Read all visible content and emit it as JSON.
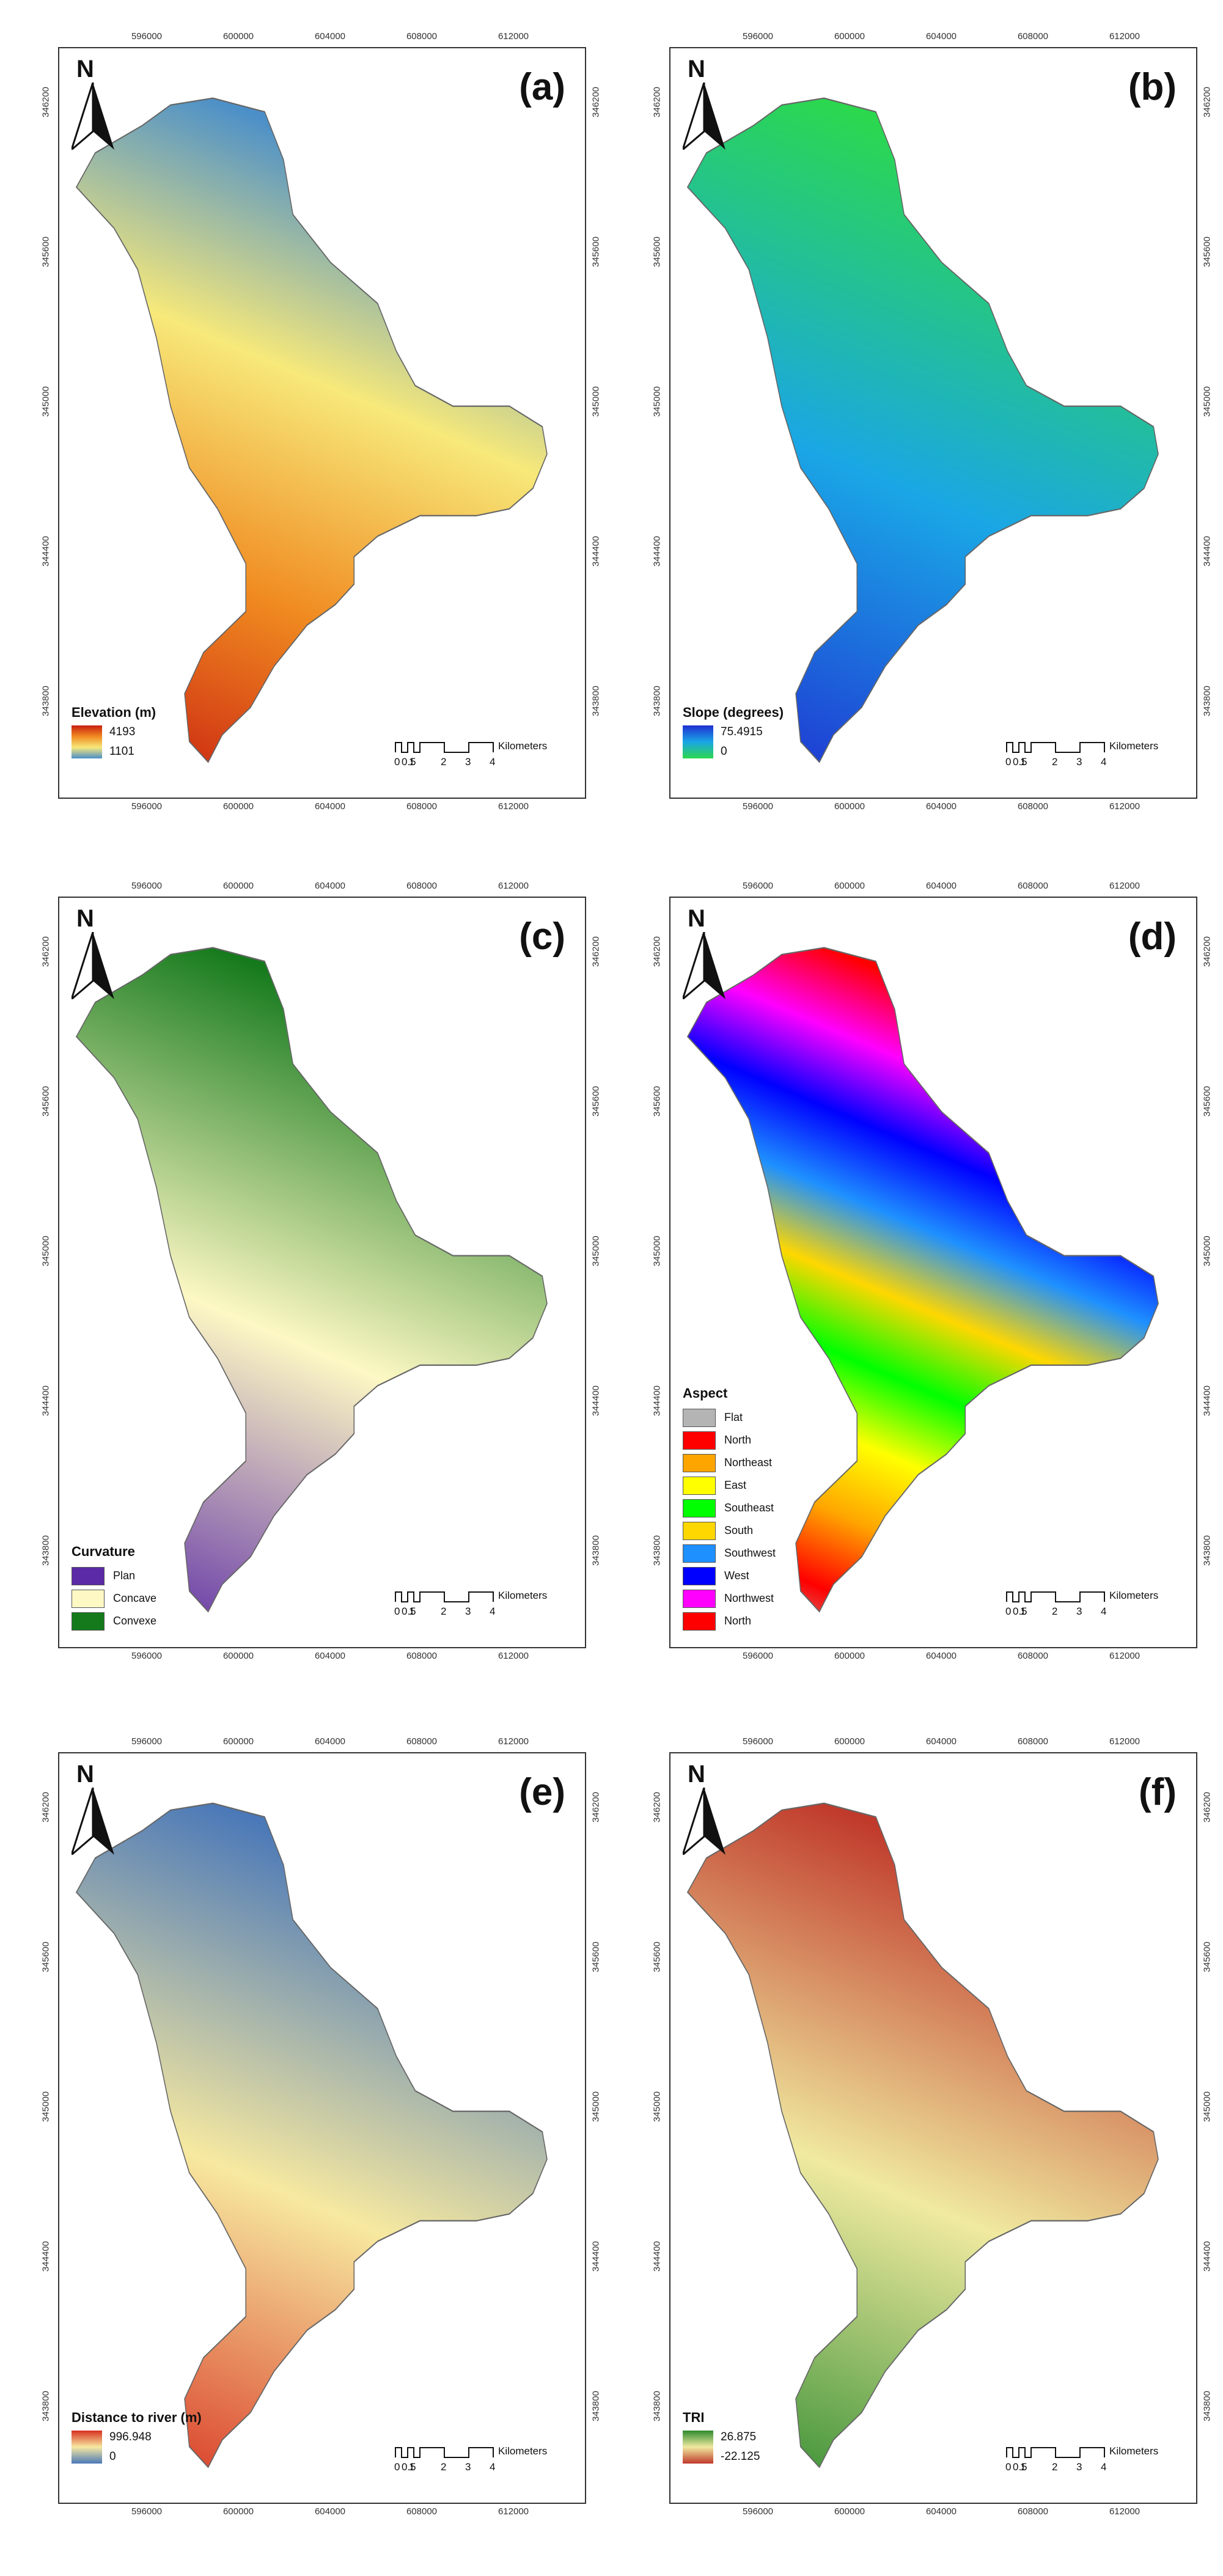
{
  "axis_ticks": {
    "x": [
      "596000",
      "600000",
      "604000",
      "608000",
      "612000"
    ],
    "y": [
      "346200",
      "345600",
      "345000",
      "344400",
      "343800"
    ]
  },
  "north_label": "N",
  "scalebar": {
    "labels": [
      "0",
      "0.5",
      "1",
      "2",
      "3",
      "4"
    ],
    "unit": "Kilometers"
  },
  "panels": [
    {
      "id": "a",
      "label": "(a)",
      "legend": {
        "type": "gradient",
        "title": "Elevation (m)",
        "max": "4193",
        "min": "1101",
        "colors": [
          "#c81e10",
          "#f08a20",
          "#f7e97a",
          "#4b8fc9"
        ]
      }
    },
    {
      "id": "b",
      "label": "(b)",
      "legend": {
        "type": "gradient",
        "title": "Slope (degrees)",
        "max": "75.4915",
        "min": "0",
        "colors": [
          "#1f2fd1",
          "#1aa6e6",
          "#2bd84d"
        ]
      }
    },
    {
      "id": "c",
      "label": "(c)",
      "legend": {
        "type": "categorical",
        "title": "Curvature",
        "items": [
          {
            "label": "Plan",
            "color": "#5b2aa6"
          },
          {
            "label": "Concave",
            "color": "#fdf8c4"
          },
          {
            "label": "Convexe",
            "color": "#157a1c"
          }
        ]
      }
    },
    {
      "id": "d",
      "label": "(d)",
      "legend": {
        "type": "categorical",
        "title": "Aspect",
        "items": [
          {
            "label": "Flat",
            "color": "#b4b4b4"
          },
          {
            "label": "North",
            "color": "#ff0000"
          },
          {
            "label": "Northeast",
            "color": "#ffa500"
          },
          {
            "label": "East",
            "color": "#ffff00"
          },
          {
            "label": "Southeast",
            "color": "#00ff00"
          },
          {
            "label": "South",
            "color": "#ffd700"
          },
          {
            "label": "Southwest",
            "color": "#1e90ff"
          },
          {
            "label": "West",
            "color": "#0000ff"
          },
          {
            "label": "Northwest",
            "color": "#ff00ff"
          },
          {
            "label": "North",
            "color": "#ff0000"
          }
        ]
      }
    },
    {
      "id": "e",
      "label": "(e)",
      "legend": {
        "type": "gradient",
        "title": "Distance to river (m)",
        "max": "996.948",
        "min": "0",
        "colors": [
          "#d7301f",
          "#f7e9a0",
          "#4a78b8"
        ]
      }
    },
    {
      "id": "f",
      "label": "(f)",
      "legend": {
        "type": "gradient",
        "title": "TRI",
        "max": "26.875",
        "min": "-22.125",
        "colors": [
          "#2e8b2e",
          "#f0eaa0",
          "#c0392b"
        ]
      }
    }
  ],
  "colors": {
    "frame": "#333333"
  }
}
